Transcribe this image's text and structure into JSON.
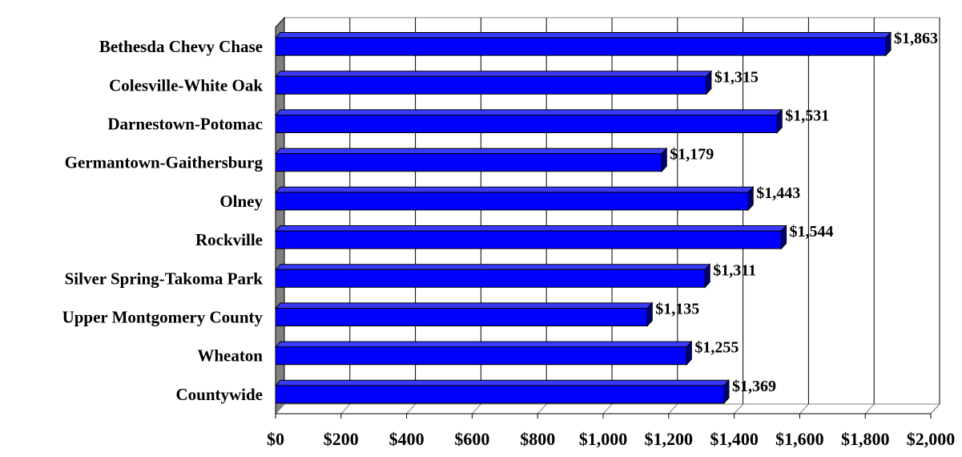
{
  "chart_data": {
    "type": "bar",
    "orientation": "horizontal",
    "style": "3d",
    "categories": [
      "Bethesda Chevy Chase",
      "Colesville-White Oak",
      "Darnestown-Potomac",
      "Germantown-Gaithersburg",
      "Olney",
      "Rockville",
      "Silver Spring-Takoma Park",
      "Upper Montgomery County",
      "Wheaton",
      "Countywide"
    ],
    "values": [
      1863,
      1315,
      1531,
      1179,
      1443,
      1544,
      1311,
      1135,
      1255,
      1369
    ],
    "data_labels": [
      "$1,863",
      "$1,315",
      "$1,531",
      "$1,179",
      "$1,443",
      "$1,544",
      "$1,311",
      "$1,135",
      "$1,255",
      "$1,369"
    ],
    "x_ticks": [
      "$0",
      "$200",
      "$400",
      "$600",
      "$800",
      "$1,000",
      "$1,200",
      "$1,400",
      "$1,600",
      "$1,800",
      "$2,000"
    ],
    "xlim": [
      0,
      2000
    ],
    "x_tick_step": 200,
    "title": "",
    "xlabel": "",
    "ylabel": "",
    "grid": "vertical",
    "legend": "none",
    "colors": {
      "bar_front": "#0000ff",
      "bar_top": "#3a3aff",
      "bar_side": "#00007a",
      "wall": "#808080",
      "grid": "#000000"
    }
  }
}
